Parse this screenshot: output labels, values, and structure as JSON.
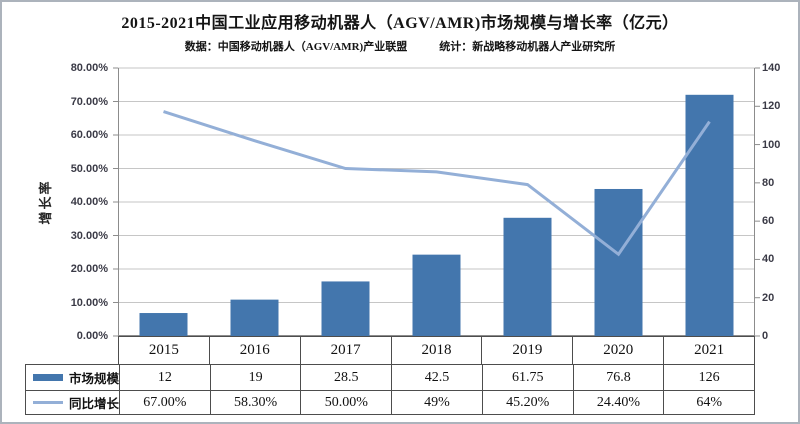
{
  "title": "2015-2021中国工业应用移动机器人（AGV/AMR)市场规模与增长率（亿元）",
  "subtitle": {
    "source": "数据：中国移动机器人（AGV/AMR)产业联盟",
    "stats": "统计：新战略移动机器人产业研究所"
  },
  "colors": {
    "bar": "#4376AD",
    "line": "#93AFD7",
    "gridline": "#C6C6C6",
    "axis_line": "#8C8C8C",
    "table_border": "#4D4D4D",
    "tick_text": "#3A3A46",
    "frame": "#ACB3BC"
  },
  "chart_data": {
    "type": "bar+line combo",
    "categories": [
      "2015",
      "2016",
      "2017",
      "2018",
      "2019",
      "2020",
      "2021"
    ],
    "series": [
      {
        "name": "市场规模",
        "type": "bar",
        "axis": "right",
        "values": [
          12,
          19,
          28.5,
          42.5,
          61.75,
          76.8,
          126
        ]
      },
      {
        "name": "同比增长率",
        "type": "line",
        "axis": "left",
        "values_percent": [
          67.0,
          58.3,
          50.0,
          49.0,
          45.2,
          24.4,
          64.0
        ],
        "labels": [
          "67.00%",
          "58.30%",
          "50.00%",
          "49%",
          "45.20%",
          "24.40%",
          "64%"
        ]
      }
    ],
    "left_axis": {
      "title": "增长率",
      "min": 0,
      "max": 80,
      "ticks": [
        "80.00%",
        "70.00%",
        "60.00%",
        "50.00%",
        "40.00%",
        "30.00%",
        "20.00%",
        "10.00%",
        "0.00%"
      ]
    },
    "right_axis": {
      "min": 0,
      "max": 140,
      "ticks": [
        "140",
        "120",
        "100",
        "80",
        "60",
        "40",
        "20",
        "0"
      ]
    },
    "grid": "horizontal",
    "legend_position": "table-left"
  },
  "table": {
    "year_row": [
      "2015",
      "2016",
      "2017",
      "2018",
      "2019",
      "2020",
      "2021"
    ],
    "rows": [
      {
        "label": "市场规模",
        "swatch": "bar-swatch",
        "values": [
          "12",
          "19",
          "28.5",
          "42.5",
          "61.75",
          "76.8",
          "126"
        ]
      },
      {
        "label": "同比增长率",
        "swatch": "line-swatch",
        "values": [
          "67.00%",
          "58.30%",
          "50.00%",
          "49%",
          "45.20%",
          "24.40%",
          "64%"
        ]
      }
    ]
  }
}
